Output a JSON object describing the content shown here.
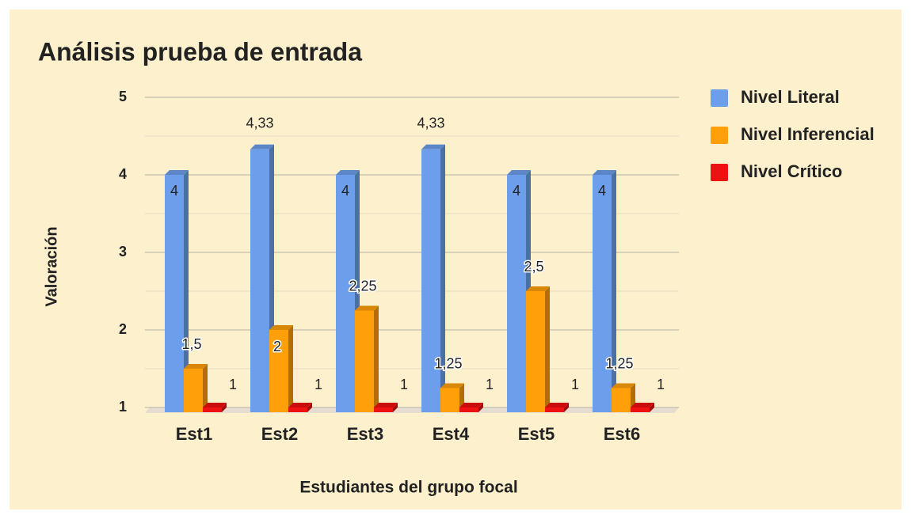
{
  "chart_data": {
    "type": "bar",
    "title": "Análisis prueba de entrada",
    "x_label": "Estudiantes del grupo focal",
    "y_label": "Valoración",
    "categories": [
      "Est1",
      "Est2",
      "Est3",
      "Est4",
      "Est5",
      "Est6"
    ],
    "series": [
      {
        "name": "Nivel Literal",
        "color": "#6d9eeb",
        "values": [
          4,
          4.33,
          4,
          4.33,
          4,
          4
        ],
        "value_labels": [
          "4",
          "4,33",
          "4",
          "4,33",
          "4",
          "4"
        ]
      },
      {
        "name": "Nivel Inferencial",
        "color": "#ff9f0a",
        "values": [
          1.5,
          2,
          2.25,
          1.25,
          2.5,
          1.25
        ],
        "value_labels": [
          "1,5",
          "2",
          "2,25",
          "1,25",
          "2,5",
          "1,25"
        ]
      },
      {
        "name": "Nivel Crítico",
        "color": "#ee1111",
        "values": [
          1,
          1,
          1,
          1,
          1,
          1
        ],
        "value_labels": [
          "1",
          "1",
          "1",
          "1",
          "1",
          "1"
        ]
      }
    ],
    "ylim": [
      1,
      5
    ],
    "yticks": [
      1,
      2,
      3,
      4,
      5
    ],
    "minor_gridlines": [
      1.5,
      2.5,
      3.5,
      4.5
    ],
    "grid": true,
    "legend": "right"
  }
}
